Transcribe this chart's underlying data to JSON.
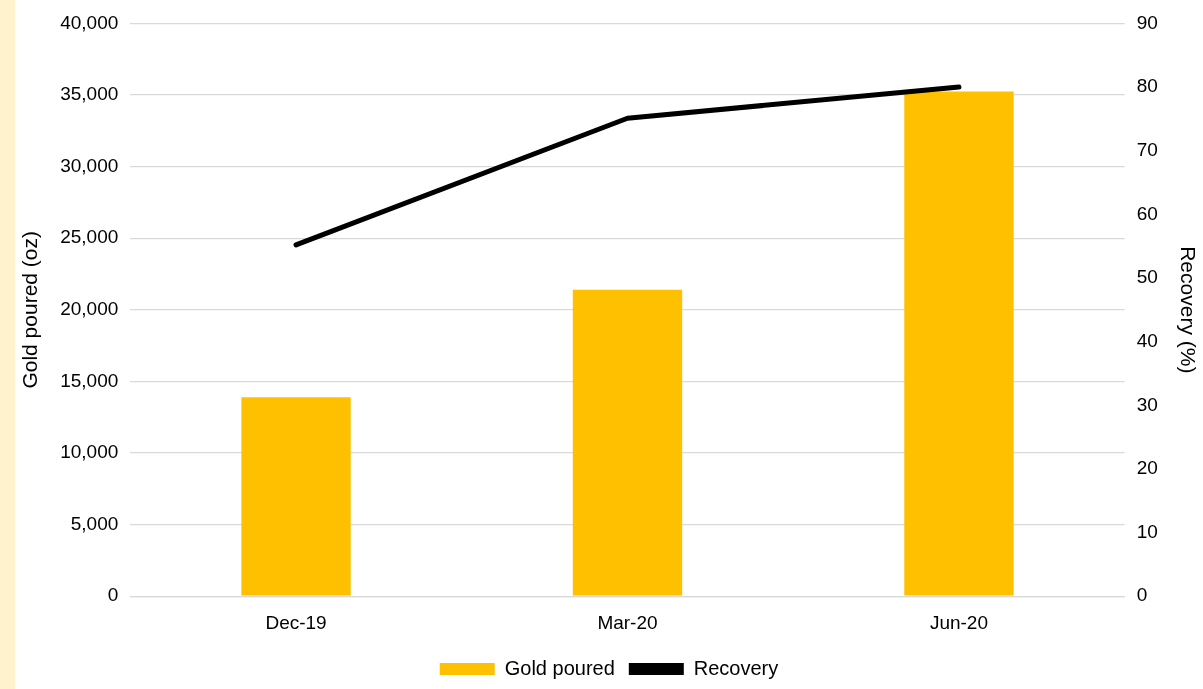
{
  "chart_data": {
    "type": "bar",
    "categories": [
      "Dec-19",
      "Mar-20",
      "Jun-20"
    ],
    "ylabel": "Gold poured (oz)",
    "y2label": "Recovery (%)",
    "series": [
      {
        "name": "Gold poured",
        "color": "#ffc000",
        "values": [
          13900,
          21400,
          35250
        ]
      },
      {
        "name": "Recovery",
        "type": "line",
        "axis": "y2",
        "color": "#000000",
        "values": [
          55.2,
          75.1,
          80
        ]
      }
    ],
    "ylim": [
      0,
      40000
    ],
    "yticks": [
      {
        "value": 0,
        "label": "0"
      },
      {
        "value": 5000,
        "label": "5,000"
      },
      {
        "value": 10000,
        "label": "10,000"
      },
      {
        "value": 15000,
        "label": "15,000"
      },
      {
        "value": 20000,
        "label": "20,000"
      },
      {
        "value": 25000,
        "label": "25,000"
      },
      {
        "value": 30000,
        "label": "30,000"
      },
      {
        "value": 35000,
        "label": "35,000"
      },
      {
        "value": 40000,
        "label": "40,000"
      }
    ],
    "y2lim": [
      0,
      90
    ],
    "y2ticks": [
      0,
      10,
      20,
      30,
      40,
      50,
      60,
      70,
      80,
      90
    ],
    "grid": "y",
    "legend": "bottom",
    "marker": "none",
    "line_style": "solid"
  }
}
